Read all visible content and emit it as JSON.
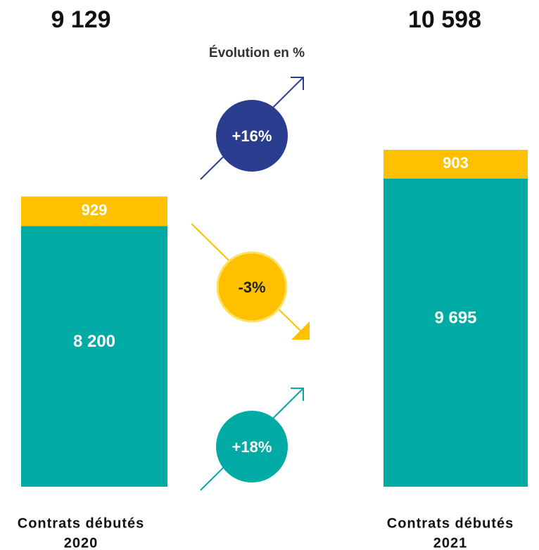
{
  "chart_data": {
    "type": "bar",
    "stacked": true,
    "categories": [
      [
        "Contrats débutés",
        "2020"
      ],
      [
        "Contrats débutés",
        "2021"
      ]
    ],
    "series": [
      {
        "color": "#00aaa5",
        "values": [
          8200,
          9695
        ],
        "value_labels": [
          "8 200",
          "9 695"
        ]
      },
      {
        "color": "#ffc000",
        "values": [
          929,
          903
        ]
      }
    ],
    "totals": [
      9129,
      10598
    ],
    "total_labels": [
      "9 129",
      "10 598"
    ],
    "evolution": {
      "title": "Évolution en %",
      "items": [
        {
          "value": 16,
          "label": "+16%",
          "color": "#2b3d8f"
        },
        {
          "value": -3,
          "label": "-3%",
          "color": "#ffc000"
        },
        {
          "value": 18,
          "label": "+18%",
          "color": "#00aaa5"
        }
      ]
    }
  }
}
